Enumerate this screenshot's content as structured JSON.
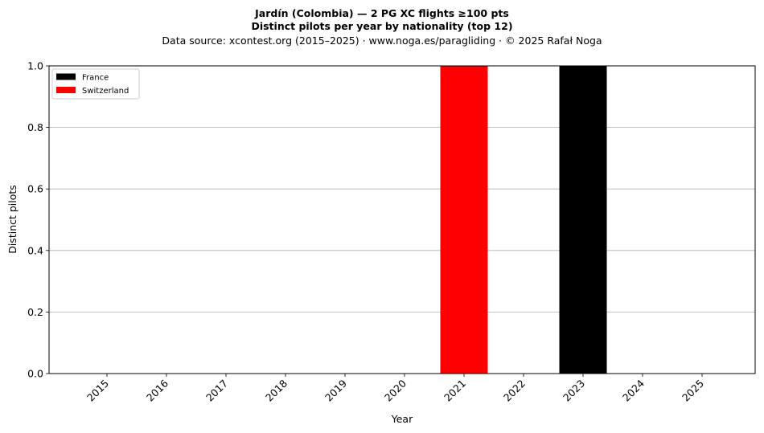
{
  "chart_data": {
    "type": "bar",
    "stacked": true,
    "title_line1": "Jardín (Colombia)  —  2 PG XC flights ≥100 pts",
    "title_line2": "Distinct pilots per year by nationality (top 12)",
    "subtitle": "Data source: xcontest.org (2015–2025)  ·  www.noga.es/paragliding  ·  © 2025 Rafał Noga",
    "xlabel": "Year",
    "ylabel": "Distinct pilots",
    "categories": [
      "2015",
      "2016",
      "2017",
      "2018",
      "2019",
      "2020",
      "2021",
      "2022",
      "2023",
      "2024",
      "2025"
    ],
    "series": [
      {
        "name": "France",
        "color": "#000000",
        "values": [
          0,
          0,
          0,
          0,
          0,
          0,
          0,
          0,
          1,
          0,
          0
        ]
      },
      {
        "name": "Switzerland",
        "color": "#ff0000",
        "values": [
          0,
          0,
          0,
          0,
          0,
          0,
          1,
          0,
          0,
          0,
          0
        ]
      }
    ],
    "ylim": [
      0,
      1.0
    ],
    "yticks": [
      "0.0",
      "0.2",
      "0.4",
      "0.6",
      "0.8",
      "1.0"
    ],
    "grid": "horizontal",
    "legend_position": "top-left"
  }
}
